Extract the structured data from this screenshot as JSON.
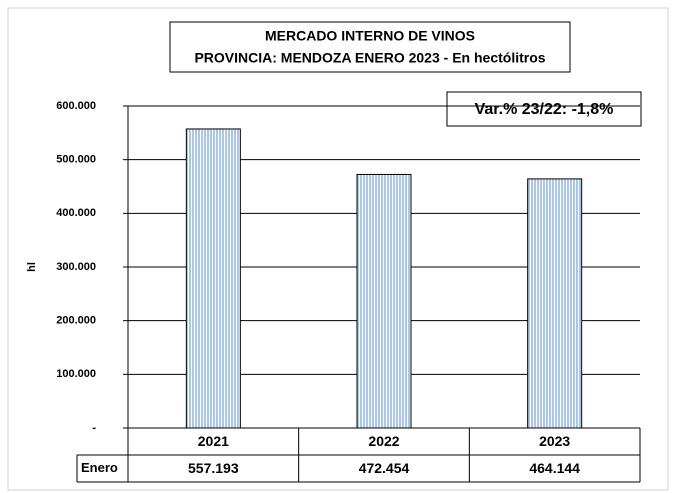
{
  "chart_data": {
    "type": "bar",
    "title": "MERCADO INTERNO DE VINOS",
    "subtitle": "PROVINCIA: MENDOZA ENERO 2023 - En hectólitros",
    "annotation": "Var.% 23/22:  -1,8%",
    "y_label": "hl",
    "categories": [
      "2021",
      "2022",
      "2023"
    ],
    "series": [
      {
        "name": "Enero",
        "color": "#a8c6ee",
        "values": [
          557193,
          472454,
          464144
        ],
        "value_labels": [
          "557.193",
          "472.454",
          "464.144"
        ]
      }
    ],
    "ylim": [
      0,
      600000
    ],
    "yticks": [
      {
        "value": 0,
        "label": "-"
      },
      {
        "value": 100000,
        "label": "100.000"
      },
      {
        "value": 200000,
        "label": "200.000"
      },
      {
        "value": 300000,
        "label": "300.000"
      },
      {
        "value": 400000,
        "label": "400.000"
      },
      {
        "value": 500000,
        "label": "500.000"
      },
      {
        "value": 600000,
        "label": "600.000"
      }
    ],
    "grid": true
  }
}
